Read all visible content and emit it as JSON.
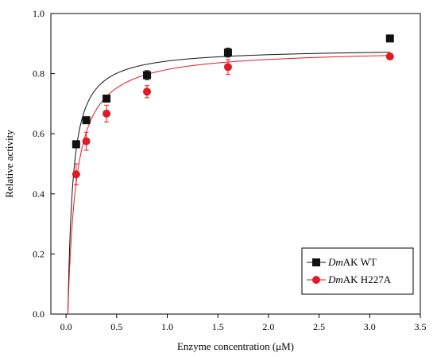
{
  "chart_data": {
    "type": "scatter",
    "title": "",
    "xlabel": "Enzyme concentration (μM)",
    "ylabel": "Relative activity",
    "xlim": [
      -0.15,
      3.5
    ],
    "ylim": [
      0.0,
      1.0
    ],
    "xticks": [
      "0.0",
      "0.5",
      "1.0",
      "1.5",
      "2.0",
      "2.5",
      "3.0",
      "3.5"
    ],
    "yticks": [
      "0.0",
      "0.2",
      "0.4",
      "0.6",
      "0.8",
      "1.0"
    ],
    "grid": false,
    "legend_position": "bottom-right",
    "series": [
      {
        "name_prefix": "Dm",
        "name_suffix": "AK WT",
        "color": "#111111",
        "marker": "square",
        "x": [
          0.1,
          0.2,
          0.4,
          0.8,
          1.6,
          3.2
        ],
        "y": [
          0.565,
          0.645,
          0.717,
          0.795,
          0.87,
          0.917
        ],
        "err": [
          0.012,
          0.008,
          0.006,
          0.015,
          0.015,
          0.008
        ],
        "fit": {
          "vmax": 0.885,
          "km": 0.0505,
          "x0": 0.0185
        }
      },
      {
        "name_prefix": "Dm",
        "name_suffix": "AK H227A",
        "color": "#e01b24",
        "marker": "circle",
        "x": [
          0.1,
          0.2,
          0.4,
          0.8,
          1.6,
          3.2
        ],
        "y": [
          0.465,
          0.575,
          0.667,
          0.74,
          0.822,
          0.857
        ],
        "err": [
          0.035,
          0.03,
          0.028,
          0.02,
          0.025,
          0.006
        ],
        "fit": {
          "vmax": 0.883,
          "km": 0.0838,
          "x0": 0.018
        }
      }
    ]
  }
}
